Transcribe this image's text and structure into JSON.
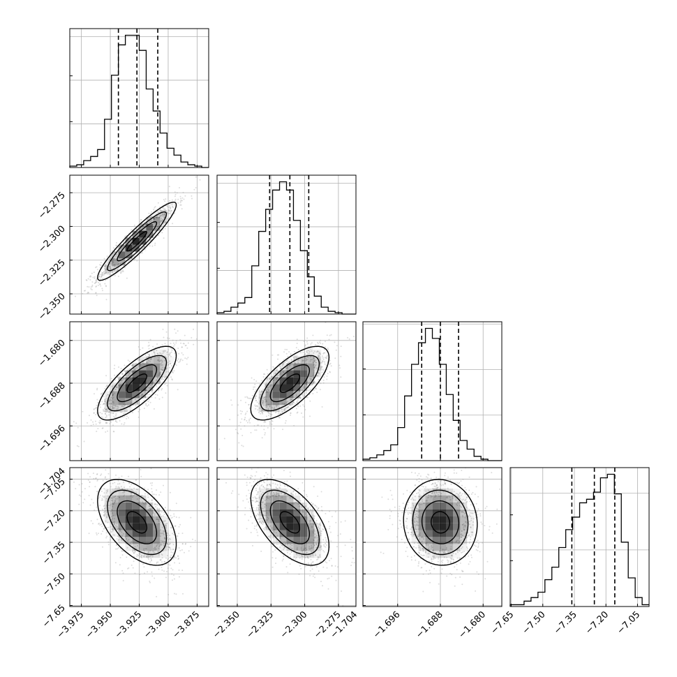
{
  "chart_data": {
    "type": "corner",
    "parameters": [
      {
        "xlim": [
          -3.985,
          -3.865
        ],
        "xticks": [
          {
            "v": -3.975,
            "label": "−3.975"
          },
          {
            "v": -3.95,
            "label": "−3.950"
          },
          {
            "v": -3.925,
            "label": "−3.925"
          },
          {
            "v": -3.9,
            "label": "−3.900"
          },
          {
            "v": -3.875,
            "label": "−3.875"
          }
        ],
        "quantiles": [
          -3.943,
          -3.927,
          -3.909
        ],
        "hist": [
          1,
          2,
          5,
          8,
          13,
          35,
          67,
          89,
          96,
          96,
          85,
          57,
          41,
          25,
          14,
          9,
          4,
          2,
          1,
          0
        ]
      },
      {
        "xlim": [
          -2.365,
          -2.262
        ],
        "xticks": [
          {
            "v": -2.35,
            "label": "−2.350"
          },
          {
            "v": -2.325,
            "label": "−2.325"
          },
          {
            "v": -2.3,
            "label": "−2.300"
          },
          {
            "v": -2.275,
            "label": "−2.275"
          }
        ],
        "yticks": [
          {
            "v": -2.275,
            "label": "−2.275"
          },
          {
            "v": -2.3,
            "label": "−2.300"
          },
          {
            "v": -2.325,
            "label": "−2.325"
          },
          {
            "v": -2.35,
            "label": "−2.350"
          }
        ],
        "quantiles": [
          -2.326,
          -2.311,
          -2.297
        ],
        "hist": [
          1,
          2,
          5,
          8,
          12,
          35,
          60,
          76,
          90,
          96,
          90,
          68,
          46,
          27,
          13,
          5,
          2,
          1,
          0,
          0
        ]
      },
      {
        "xlim": [
          -1.7025,
          -1.6765
        ],
        "xticks": [
          {
            "v": -1.704,
            "label": "−1.704"
          },
          {
            "v": -1.696,
            "label": "−1.696"
          },
          {
            "v": -1.688,
            "label": "−1.688"
          },
          {
            "v": -1.68,
            "label": "−1.680"
          }
        ],
        "yticks": [
          {
            "v": -1.68,
            "label": "−1.680"
          },
          {
            "v": -1.688,
            "label": "−1.688"
          },
          {
            "v": -1.696,
            "label": "−1.696"
          },
          {
            "v": -1.704,
            "label": "−1.704"
          }
        ],
        "quantiles": [
          -1.6915,
          -1.688,
          -1.6846
        ],
        "hist": [
          1,
          2,
          4,
          7,
          11,
          23,
          45,
          67,
          82,
          92,
          85,
          67,
          46,
          28,
          14,
          8,
          3,
          1,
          0,
          0
        ]
      },
      {
        "xlim": [
          -7.655,
          -6.995
        ],
        "xticks": [
          {
            "v": -7.65,
            "label": "−7.65"
          },
          {
            "v": -7.5,
            "label": "−7.50"
          },
          {
            "v": -7.35,
            "label": "−7.35"
          },
          {
            "v": -7.2,
            "label": "−7.20"
          },
          {
            "v": -7.05,
            "label": "−7.05"
          }
        ],
        "yticks": [
          {
            "v": -7.05,
            "label": "−7.05"
          },
          {
            "v": -7.2,
            "label": "−7.20"
          },
          {
            "v": -7.35,
            "label": "−7.35"
          },
          {
            "v": -7.5,
            "label": "−7.50"
          },
          {
            "v": -7.65,
            "label": "−7.65"
          }
        ],
        "quantiles": [
          -7.362,
          -7.255,
          -7.158
        ],
        "hist": [
          1,
          1,
          3,
          5,
          8,
          15,
          22,
          33,
          43,
          50,
          58,
          60,
          64,
          72,
          74,
          63,
          36,
          16,
          5,
          1
        ]
      }
    ],
    "correlations": [
      [
        1,
        0.93,
        0.75,
        -0.5
      ],
      [
        0.93,
        1,
        0.7,
        -0.55
      ],
      [
        0.75,
        0.7,
        1,
        -0.05
      ],
      [
        -0.5,
        -0.55,
        -0.05,
        1
      ]
    ],
    "contour_levels_sigma": [
      0.5,
      1,
      1.5,
      2
    ],
    "grid": true,
    "colors": {
      "hist_line": "#000000",
      "contour": "#000000",
      "scatter": "#9a9a9a",
      "grid": "#b0b0b0",
      "density": "#000000"
    }
  }
}
